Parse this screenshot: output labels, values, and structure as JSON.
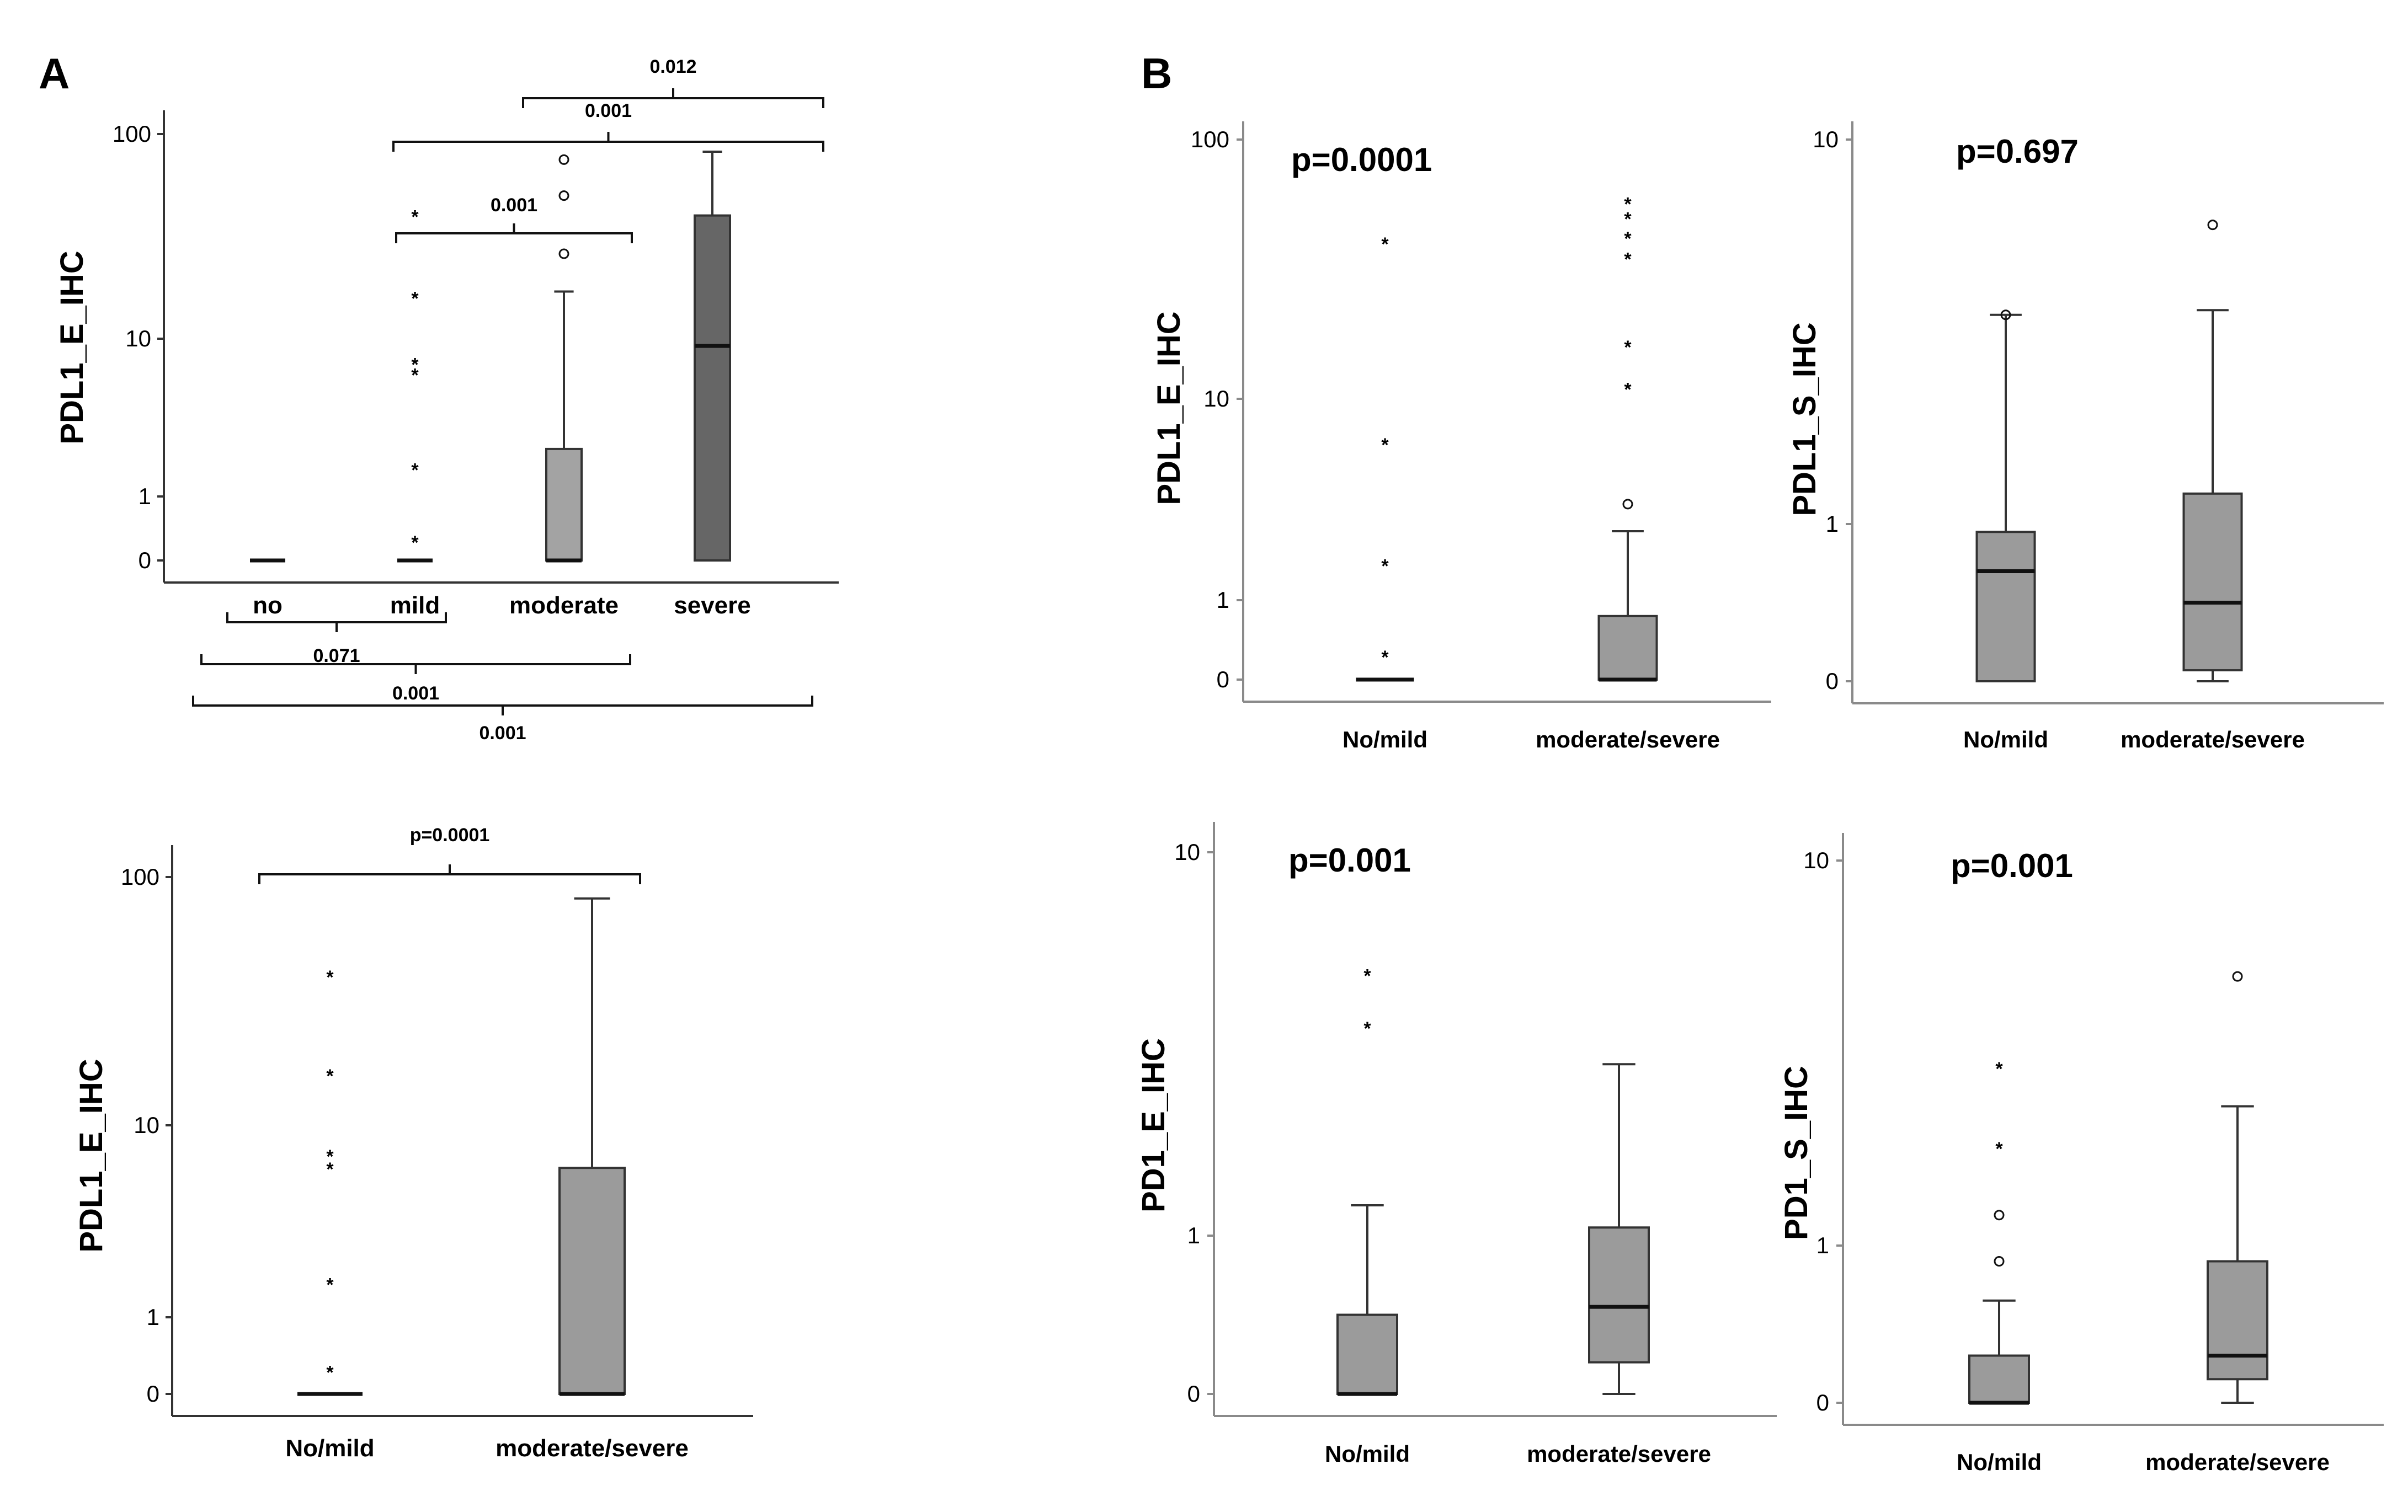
{
  "figure": {
    "panel_labels": [
      "A",
      "B"
    ],
    "colors": {
      "box_light": "#a3a3a3",
      "box_dark": "#666666",
      "box_mid": "#9b9b9b",
      "axis": "#333333"
    }
  },
  "chart_data": [
    {
      "id": "A1",
      "type": "box",
      "ylabel": "PDL1_E_IHC",
      "yscale": "log-like",
      "yticks": [
        {
          "v": 0,
          "t": "0"
        },
        {
          "v": 1,
          "t": "1"
        },
        {
          "v": 10,
          "t": "10"
        },
        {
          "v": 100,
          "t": "100"
        }
      ],
      "categories": [
        "no",
        "mild",
        "moderate",
        "severe"
      ],
      "boxes": [
        {
          "min": 0,
          "q1": 0,
          "median": 0,
          "q3": 0,
          "max": 0,
          "color": "#a3a3a3"
        },
        {
          "min": 0,
          "q1": 0,
          "median": 0,
          "q3": 0,
          "max": 0,
          "color": "#a3a3a3",
          "stars": [
            0.3,
            1.5,
            6,
            7,
            16,
            40
          ]
        },
        {
          "min": 0,
          "q1": 0,
          "median": 0,
          "q3": 2,
          "max": 17,
          "color": "#a3a3a3",
          "circles": [
            26,
            50,
            75
          ]
        },
        {
          "min": 0,
          "q1": 0,
          "median": 9,
          "q3": 40,
          "max": 82,
          "color": "#666666"
        }
      ],
      "brackets_top": [
        {
          "from": 1,
          "to": 2,
          "p": "0.001"
        },
        {
          "from": 1,
          "to": 3,
          "p": "0.001"
        },
        {
          "from": 2,
          "to": 3,
          "p": "0.012"
        }
      ],
      "brackets_bottom": [
        {
          "from": 0,
          "to": 1,
          "p": "0.071"
        },
        {
          "from": 0,
          "to": 2,
          "p": "0.001"
        },
        {
          "from": 0,
          "to": 3,
          "p": "0.001"
        }
      ]
    },
    {
      "id": "A2",
      "type": "box",
      "ylabel": "PDL1_E_IHC",
      "yscale": "log-like",
      "yticks": [
        {
          "v": 0,
          "t": "0"
        },
        {
          "v": 1,
          "t": "1"
        },
        {
          "v": 10,
          "t": "10"
        },
        {
          "v": 100,
          "t": "100"
        }
      ],
      "categories": [
        "No/mild",
        "moderate/severe"
      ],
      "boxes": [
        {
          "min": 0,
          "q1": 0,
          "median": 0,
          "q3": 0,
          "max": 0,
          "color": "#9b9b9b",
          "stars": [
            0.3,
            1.5,
            6,
            7,
            16,
            40
          ]
        },
        {
          "min": 0,
          "q1": 0,
          "median": 0,
          "q3": 6,
          "max": 82,
          "color": "#9b9b9b"
        }
      ],
      "brackets_top": [
        {
          "from": 0,
          "to": 1,
          "p": "p=0.0001"
        }
      ]
    },
    {
      "id": "B1",
      "type": "box",
      "ylabel": "PDL1_E_IHC",
      "yscale": "log-like",
      "yticks": [
        {
          "v": 0,
          "t": "0"
        },
        {
          "v": 1,
          "t": "1"
        },
        {
          "v": 10,
          "t": "10"
        },
        {
          "v": 100,
          "t": "100"
        }
      ],
      "categories": [
        "No/mild",
        "moderate/severe"
      ],
      "annotation": "p=0.0001",
      "boxes": [
        {
          "min": 0,
          "q1": 0,
          "median": 0,
          "q3": 0,
          "max": 0,
          "color": "#9b9b9b",
          "stars": [
            0.3,
            1.5,
            6,
            40
          ]
        },
        {
          "min": 0,
          "q1": 0,
          "median": 0,
          "q3": 0.8,
          "max": 2.2,
          "color": "#9b9b9b",
          "circles": [
            3
          ],
          "stars": [
            11,
            16,
            35,
            42,
            50,
            57
          ]
        }
      ]
    },
    {
      "id": "B2",
      "type": "box",
      "ylabel": "PDL1_S_IHC",
      "yscale": "log-like",
      "yticks": [
        {
          "v": 0,
          "t": "0"
        },
        {
          "v": 1,
          "t": "1"
        },
        {
          "v": 10,
          "t": "10"
        }
      ],
      "categories": [
        "No/mild",
        "moderate/severe"
      ],
      "annotation": "p=0.697",
      "boxes": [
        {
          "min": 0,
          "q1": 0,
          "median": 0.7,
          "q3": 0.95,
          "max": 3.5,
          "color": "#9b9b9b",
          "circles": [
            3.5
          ]
        },
        {
          "min": 0,
          "q1": 0.07,
          "median": 0.5,
          "q3": 1.2,
          "max": 3.6,
          "color": "#9b9b9b",
          "circles": [
            6
          ]
        }
      ]
    },
    {
      "id": "B3",
      "type": "box",
      "ylabel": "PD1_E_IHC",
      "yscale": "log-like",
      "yticks": [
        {
          "v": 0,
          "t": "0"
        },
        {
          "v": 1,
          "t": "1"
        },
        {
          "v": 10,
          "t": "10"
        }
      ],
      "categories": [
        "No/mild",
        "moderate/severe"
      ],
      "annotation": "p=0.001",
      "boxes": [
        {
          "min": 0,
          "q1": 0,
          "median": 0,
          "q3": 0.5,
          "max": 1.2,
          "color": "#9b9b9b",
          "stars": [
            3.5,
            4.8
          ]
        },
        {
          "min": 0,
          "q1": 0.2,
          "median": 0.55,
          "q3": 1.05,
          "max": 2.8,
          "color": "#9b9b9b"
        }
      ]
    },
    {
      "id": "B4",
      "type": "box",
      "ylabel": "PD1_S_IHC",
      "yscale": "log-like",
      "yticks": [
        {
          "v": 0,
          "t": "0"
        },
        {
          "v": 1,
          "t": "1"
        },
        {
          "v": 10,
          "t": "10"
        }
      ],
      "categories": [
        "No/mild",
        "moderate/severe"
      ],
      "annotation": "p=0.001",
      "boxes": [
        {
          "min": 0,
          "q1": 0,
          "median": 0,
          "q3": 0.3,
          "max": 0.65,
          "color": "#9b9b9b",
          "circles": [
            0.9,
            1.2
          ],
          "stars": [
            1.8,
            2.9
          ]
        },
        {
          "min": 0,
          "q1": 0.15,
          "median": 0.3,
          "q3": 0.9,
          "max": 2.3,
          "color": "#9b9b9b",
          "circles": [
            5
          ]
        }
      ]
    }
  ]
}
